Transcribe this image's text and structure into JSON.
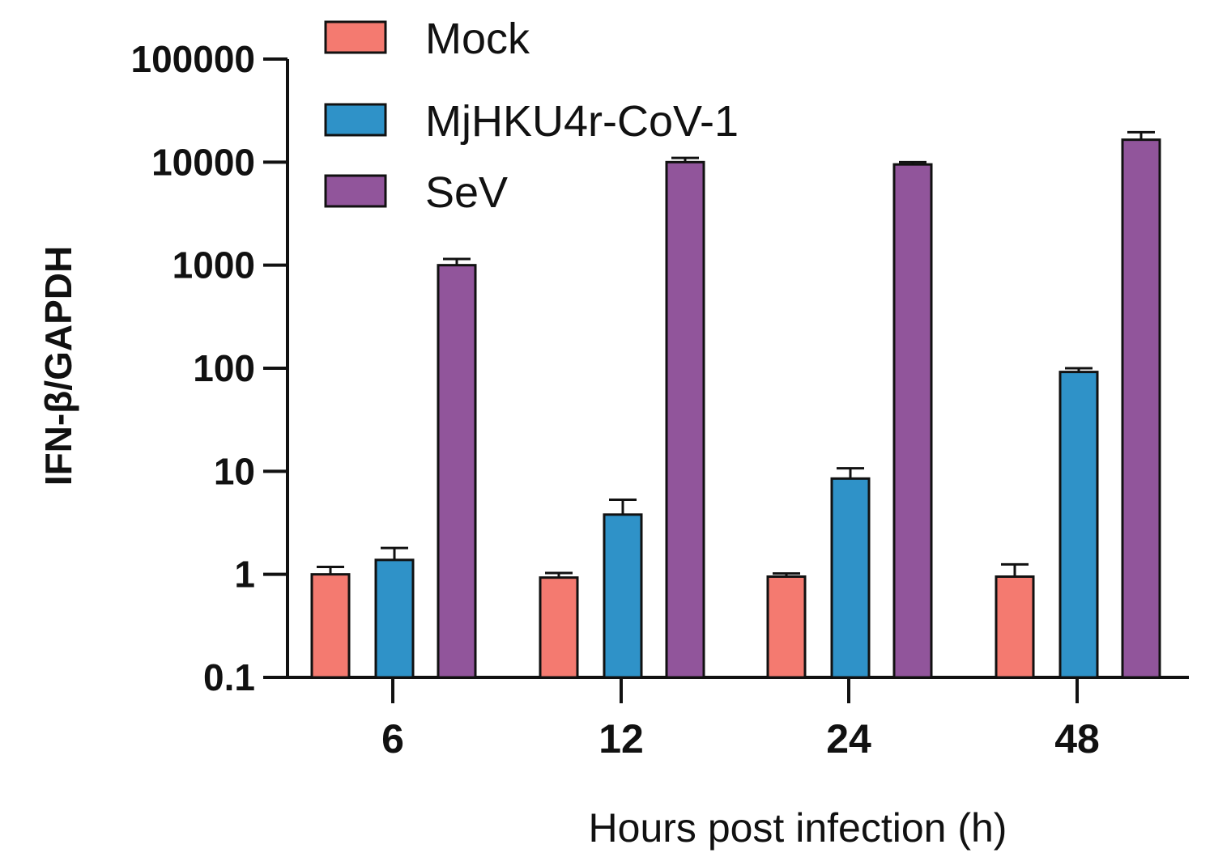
{
  "chart_data": {
    "type": "bar",
    "title": "",
    "xlabel": "Hours post infection (h)",
    "ylabel": "IFN-β/GAPDH",
    "yscale": "log",
    "ylim": [
      0.1,
      100000
    ],
    "yticks": [
      {
        "value": 0.1,
        "label": "0.1"
      },
      {
        "value": 1,
        "label": "1"
      },
      {
        "value": 10,
        "label": "10"
      },
      {
        "value": 100,
        "label": "100"
      },
      {
        "value": 1000,
        "label": "1000"
      },
      {
        "value": 10000,
        "label": "10000"
      },
      {
        "value": 100000,
        "label": "100000"
      }
    ],
    "categories": [
      "6",
      "12",
      "24",
      "48"
    ],
    "series": [
      {
        "name": "Mock",
        "color": "#f47a70",
        "values": [
          1.0,
          0.93,
          0.95,
          0.95
        ],
        "errors": [
          1.18,
          1.03,
          1.02,
          1.25
        ]
      },
      {
        "name": "MjHKU4r-CoV-1",
        "color": "#2f92c8",
        "values": [
          1.38,
          3.8,
          8.5,
          92
        ],
        "errors": [
          1.8,
          5.3,
          10.7,
          100
        ]
      },
      {
        "name": "SeV",
        "color": "#91559b",
        "values": [
          1000,
          10000,
          9500,
          16500
        ],
        "errors": [
          1150,
          11000,
          10000,
          19500
        ]
      }
    ],
    "legend_position": "top-left",
    "grid": false
  }
}
